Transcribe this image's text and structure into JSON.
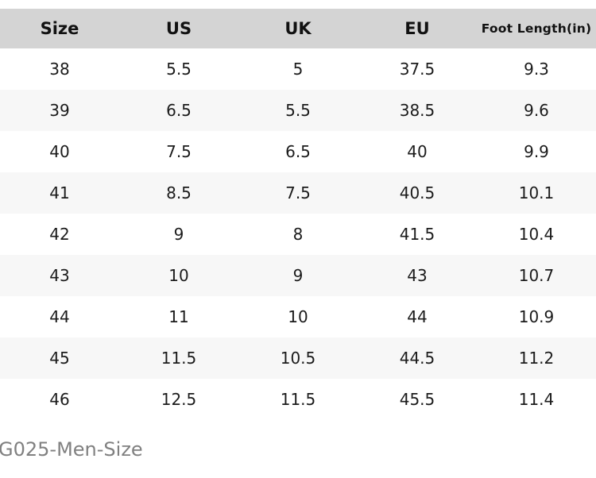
{
  "table": {
    "headers": [
      "Size",
      "US",
      "UK",
      "EU",
      "Foot Length(in)"
    ],
    "rows": [
      {
        "size": "38",
        "us": "5.5",
        "uk": "5",
        "eu": "37.5",
        "foot_length": "9.3"
      },
      {
        "size": "39",
        "us": "6.5",
        "uk": "5.5",
        "eu": "38.5",
        "foot_length": "9.6"
      },
      {
        "size": "40",
        "us": "7.5",
        "uk": "6.5",
        "eu": "40",
        "foot_length": "9.9"
      },
      {
        "size": "41",
        "us": "8.5",
        "uk": "7.5",
        "eu": "40.5",
        "foot_length": "10.1"
      },
      {
        "size": "42",
        "us": "9",
        "uk": "8",
        "eu": "41.5",
        "foot_length": "10.4"
      },
      {
        "size": "43",
        "us": "10",
        "uk": "9",
        "eu": "43",
        "foot_length": "10.7"
      },
      {
        "size": "44",
        "us": "11",
        "uk": "10",
        "eu": "44",
        "foot_length": "10.9"
      },
      {
        "size": "45",
        "us": "11.5",
        "uk": "10.5",
        "eu": "44.5",
        "foot_length": "11.2"
      },
      {
        "size": "46",
        "us": "12.5",
        "uk": "11.5",
        "eu": "45.5",
        "foot_length": "11.4"
      }
    ]
  },
  "caption": "G025-Men-Size",
  "colors": {
    "header_bg": "#d4d4d4",
    "row_alt_bg": "#f7f7f7",
    "text": "#1b1b1b",
    "caption": "#808080"
  }
}
